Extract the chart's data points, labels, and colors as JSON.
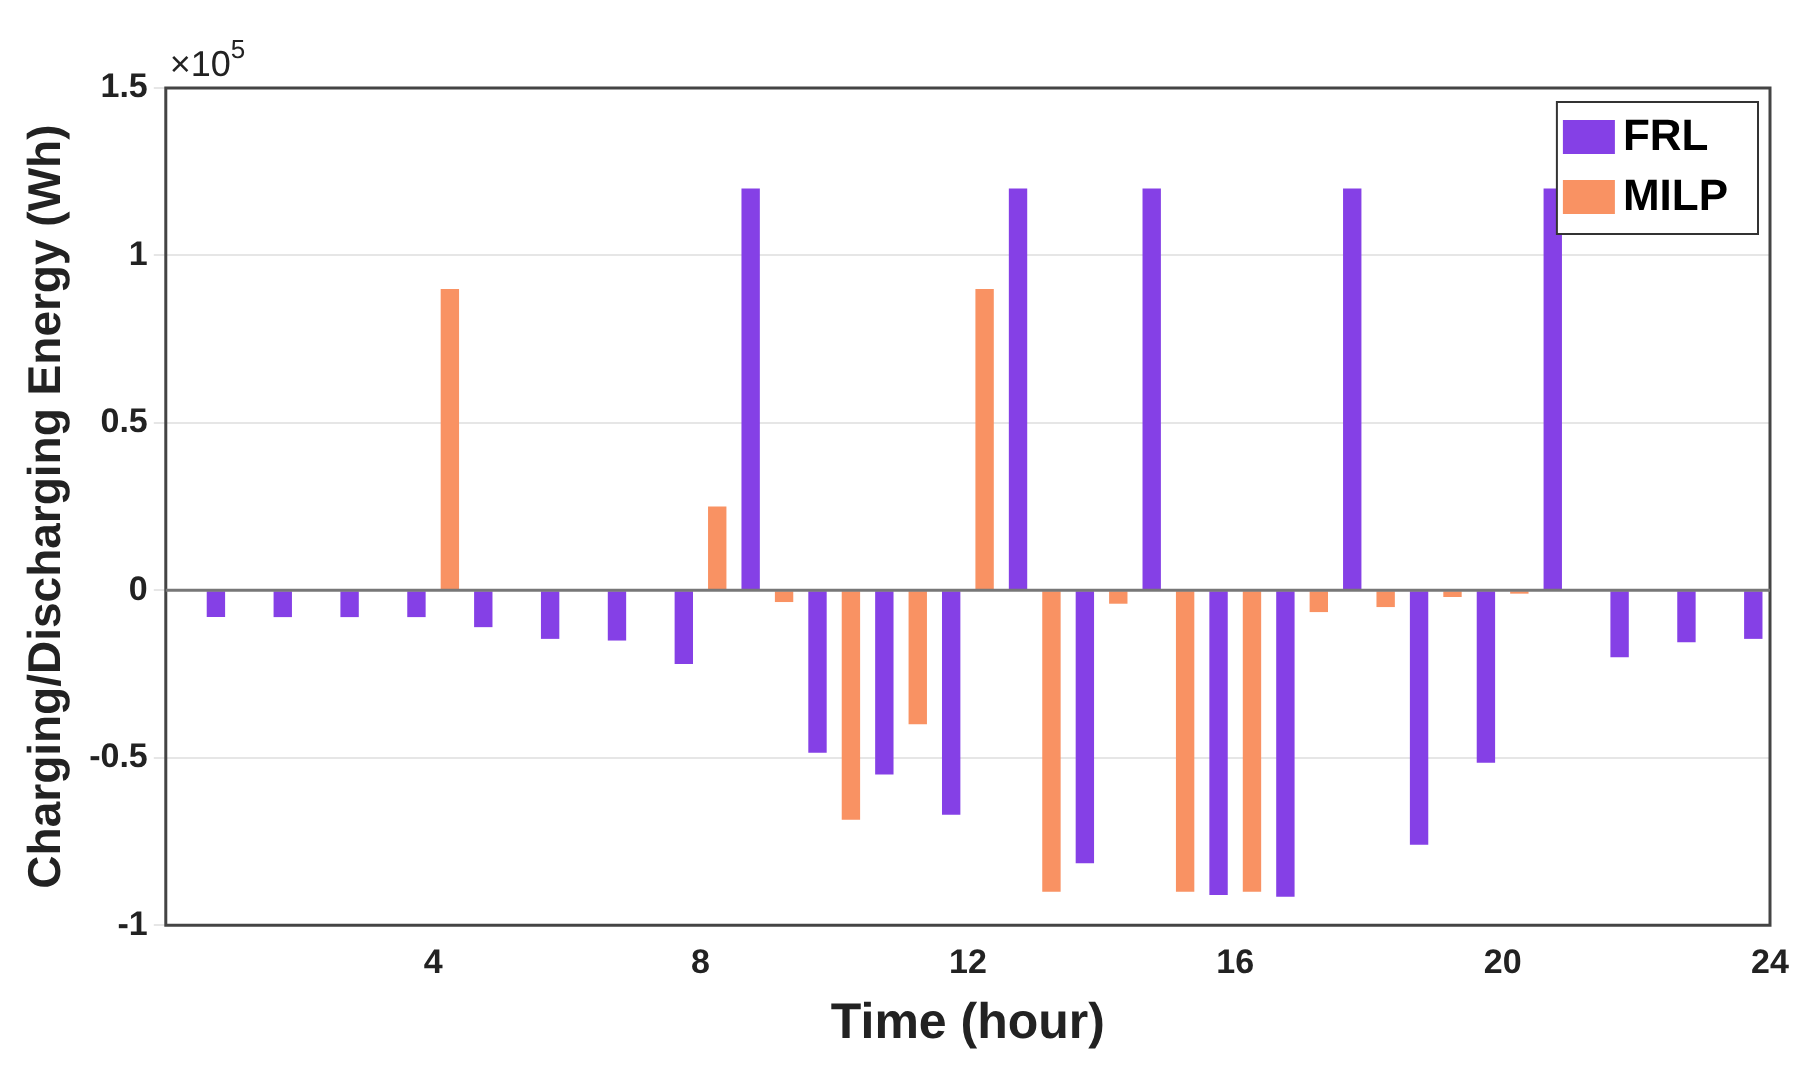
{
  "chart_data": {
    "type": "bar",
    "xlabel": "Time (hour)",
    "ylabel": "Charging/Discharging Energy (Wh)",
    "annotations": [
      "×10$^{5}$"
    ],
    "x": [
      1,
      2,
      3,
      4,
      5,
      6,
      7,
      8,
      9,
      10,
      11,
      12,
      13,
      14,
      15,
      16,
      17,
      18,
      19,
      20,
      21,
      22,
      23,
      24
    ],
    "series": [
      {
        "name": "FRL",
        "color": "#8540e6",
        "values": [
          -0.08,
          -0.08,
          -0.08,
          -0.08,
          -0.11,
          -0.145,
          -0.15,
          -0.22,
          1.2,
          -0.485,
          -0.55,
          -0.67,
          1.2,
          -0.815,
          1.2,
          -0.91,
          -0.915,
          1.2,
          -0.76,
          -0.515,
          1.2,
          -0.2,
          -0.155,
          -0.145
        ]
      },
      {
        "name": "MILP",
        "color": "#f99263",
        "values": [
          0,
          0,
          0,
          0.9,
          0,
          0,
          0,
          0.25,
          -0.035,
          -0.685,
          -0.4,
          0.9,
          -0.9,
          -0.04,
          -0.9,
          -0.9,
          -0.065,
          -0.05,
          -0.02,
          -0.01,
          0,
          0,
          0,
          0
        ]
      }
    ],
    "xlim": [
      0,
      24
    ],
    "xticks": [
      4,
      8,
      12,
      16,
      20,
      24
    ],
    "ylim": [
      -1,
      1.5
    ],
    "yticks": [
      -1,
      -0.5,
      0,
      0.5,
      1,
      1.5
    ],
    "grid": "y",
    "legend": "top right"
  }
}
